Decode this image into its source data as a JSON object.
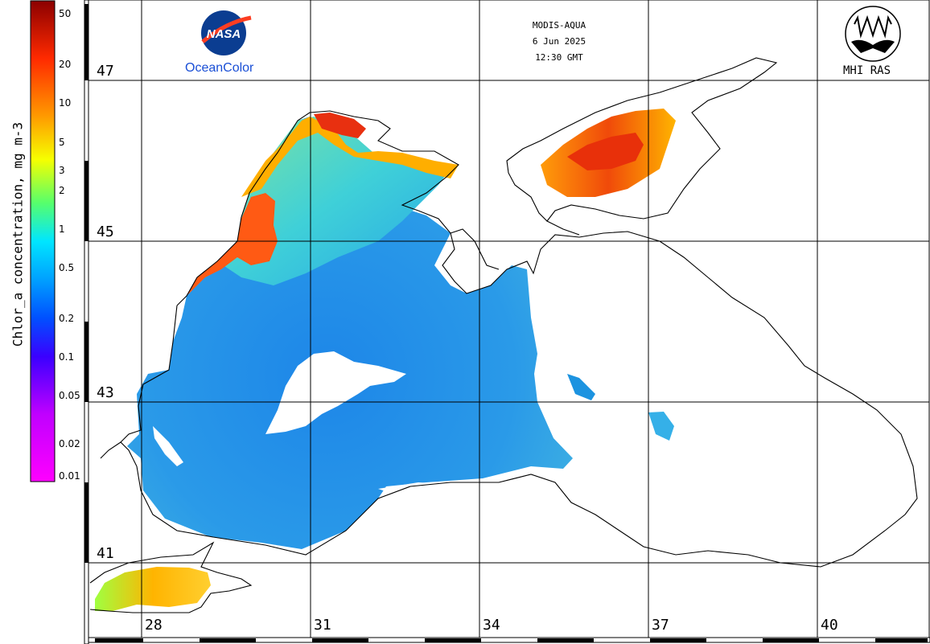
{
  "colorbar": {
    "title": "Chlor_a concentration, mg m-3",
    "ticks": [
      "50",
      "20",
      "10",
      "5",
      "3",
      "2",
      "1",
      "0.5",
      "0.2",
      "0.1",
      "0.05",
      "0.02",
      "0.01"
    ]
  },
  "header": {
    "sensor": "MODIS-AQUA",
    "date": "6 Jun 2025",
    "time": "12:30 GMT"
  },
  "logos": {
    "nasa": "NASA",
    "oceancolor": "OceanColor",
    "institute": "MHI RAS"
  },
  "grid": {
    "latitudes": [
      "47",
      "45",
      "43",
      "41"
    ],
    "longitudes": [
      "28",
      "31",
      "34",
      "37",
      "40"
    ]
  }
}
